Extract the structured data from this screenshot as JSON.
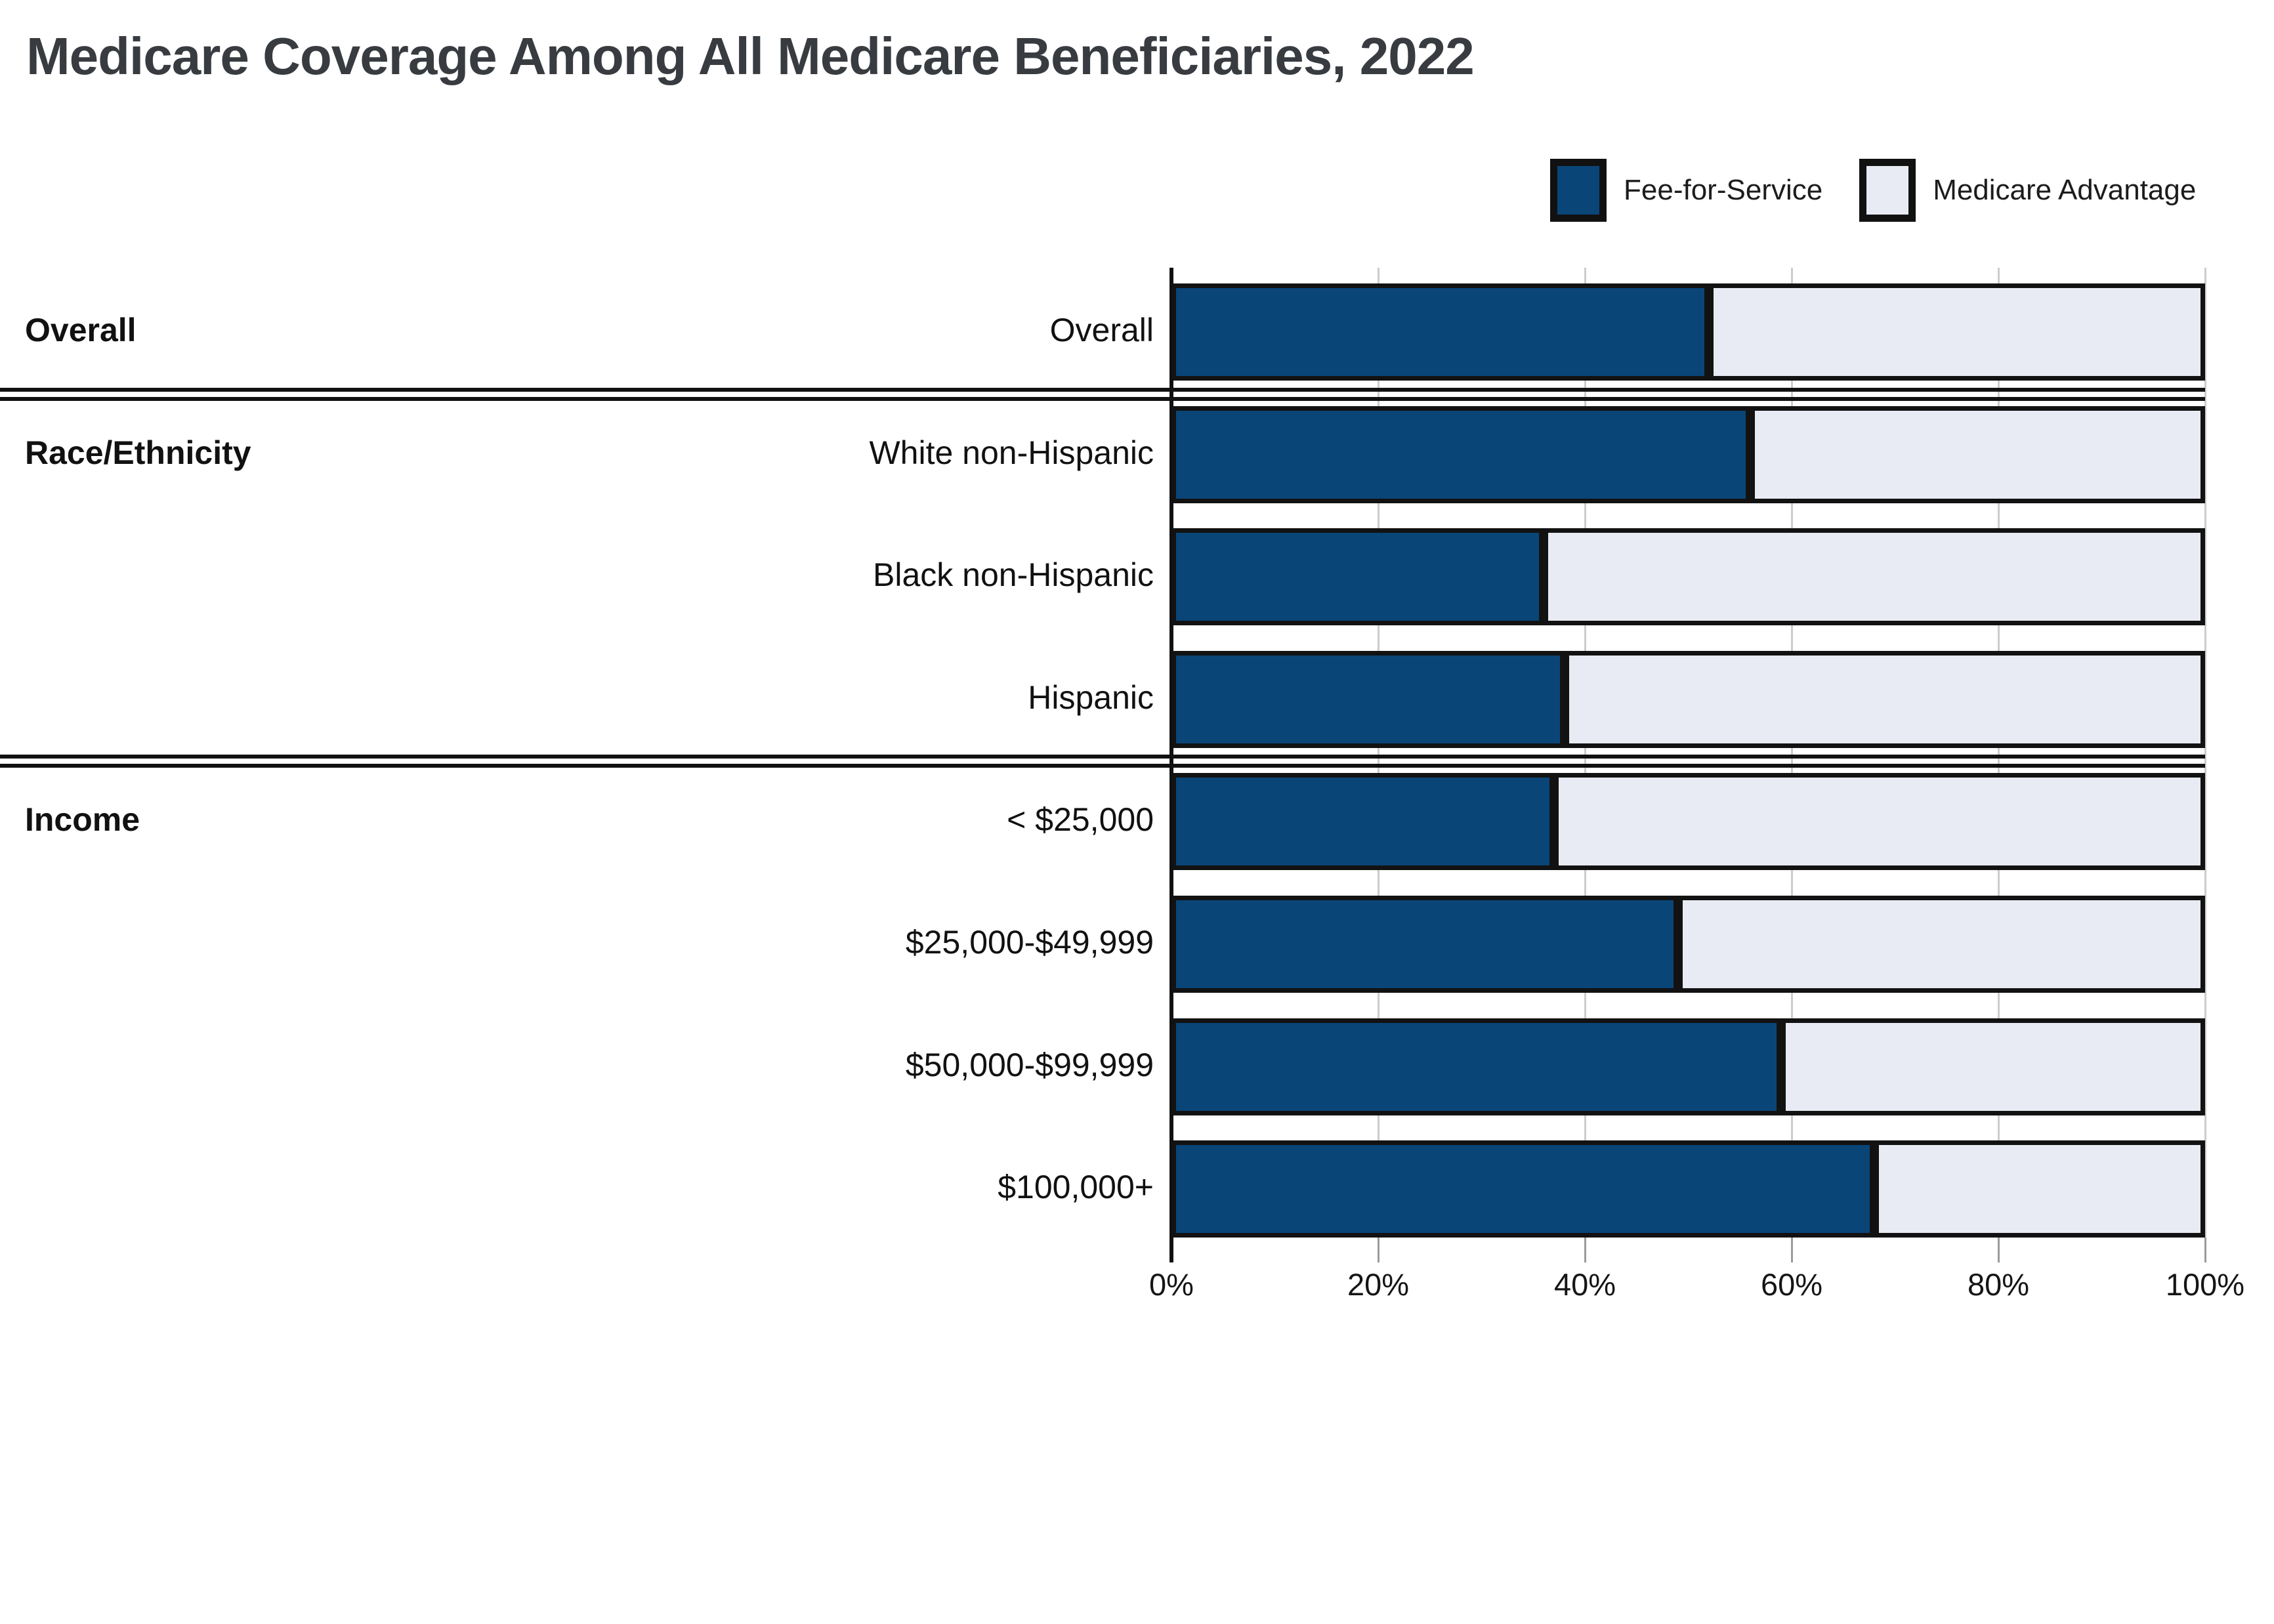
{
  "title": "Medicare Coverage Among All Medicare Beneficiaries, 2022",
  "legend": [
    {
      "label": "Fee-for-Service",
      "color": "#0A4578"
    },
    {
      "label": "Medicare Advantage",
      "color": "#E8EBF3"
    }
  ],
  "chart_data": {
    "type": "bar",
    "orientation": "horizontal",
    "stacked": true,
    "unit": "percent",
    "title": "Medicare Coverage Among All Medicare Beneficiaries, 2022",
    "categories": [
      "Overall",
      "White non-Hispanic",
      "Black non-Hispanic",
      "Hispanic",
      "< $25,000",
      "$25,000-$49,999",
      "$50,000-$99,999",
      "$100,000+"
    ],
    "series": [
      {
        "name": "Fee-for-Service",
        "color": "#0A4578",
        "values": [
          52,
          56,
          36,
          38,
          37,
          49,
          59,
          68
        ]
      },
      {
        "name": "Medicare Advantage",
        "color": "#E8EBF3",
        "values": [
          48,
          44,
          64,
          62,
          63,
          51,
          41,
          32
        ]
      }
    ],
    "groups": [
      {
        "label": "Overall",
        "rows": [
          0
        ]
      },
      {
        "label": "Race/Ethnicity",
        "rows": [
          1,
          2,
          3
        ]
      },
      {
        "label": "Income",
        "rows": [
          4,
          5,
          6,
          7
        ]
      }
    ],
    "x_axis": {
      "min": 0,
      "max": 100,
      "tick_values": [
        0,
        20,
        40,
        60,
        80,
        100
      ],
      "tick_labels": [
        "0%",
        "20%",
        "40%",
        "60%",
        "80%",
        "100%"
      ]
    },
    "grid": true,
    "legend_position": "top-right"
  },
  "colors": {
    "fee_for_service": "#0A4578",
    "medicare_advantage": "#E8EBF3",
    "bar_border": "#121212",
    "gridline": "#cccccc",
    "axis": "#111111",
    "divider": "#111111",
    "title_text": "#383c41",
    "label_text": "#111111"
  }
}
